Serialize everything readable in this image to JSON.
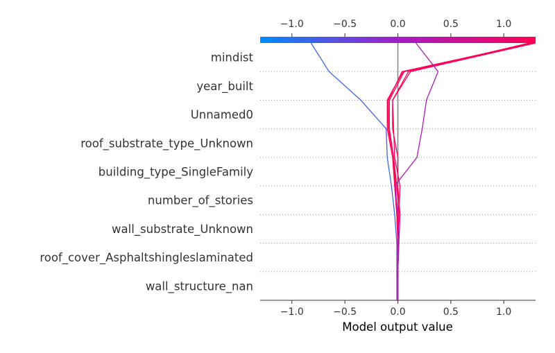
{
  "chart_data": {
    "type": "decision-plot",
    "xlabel": "Model output value",
    "xlim": [
      -1.3,
      1.3
    ],
    "xticks": [
      -1.0,
      -0.5,
      0.0,
      0.5,
      1.0
    ],
    "xtick_labels": [
      "−1.0",
      "−0.5",
      "0.0",
      "0.5",
      "1.0"
    ],
    "base_value": 0.0,
    "features": [
      "wall_structure_nan",
      "roof_cover_Asphaltshingleslaminated",
      "wall_substrate_Unknown",
      "number_of_stories",
      "building_type_SingleFamily",
      "roof_substrate_type_Unknown",
      "Unnamed0",
      "year_built",
      "mindist"
    ],
    "colorbar": {
      "low_color": "#008bfb",
      "high_color": "#ff0052"
    },
    "series": [
      {
        "values": [
          -0.01,
          -0.01,
          -0.01,
          -0.03,
          -0.06,
          -0.1,
          -0.11,
          -0.35,
          -0.65,
          -0.82
        ]
      },
      {
        "values": [
          0.0,
          0.0,
          0.0,
          -0.01,
          -0.03,
          -0.05,
          -0.1,
          -0.1,
          0.05,
          1.3
        ]
      },
      {
        "values": [
          0.0,
          0.0,
          0.0,
          -0.01,
          -0.02,
          -0.04,
          -0.09,
          -0.09,
          0.04,
          1.28
        ]
      },
      {
        "values": [
          0.0,
          0.0,
          0.0,
          0.01,
          -0.01,
          -0.04,
          -0.08,
          -0.08,
          0.06,
          1.26
        ]
      },
      {
        "values": [
          0.0,
          0.0,
          0.0,
          -0.01,
          -0.03,
          -0.04,
          -0.09,
          -0.1,
          0.05,
          1.29
        ]
      },
      {
        "values": [
          0.0,
          0.0,
          0.0,
          0.01,
          0.02,
          -0.03,
          -0.04,
          -0.05,
          0.12,
          1.3
        ]
      },
      {
        "values": [
          0.0,
          0.0,
          0.01,
          0.02,
          0.0,
          0.0,
          -0.05,
          -0.05,
          0.1,
          1.24
        ]
      },
      {
        "values": [
          0.0,
          0.0,
          0.01,
          0.0,
          -0.03,
          0.18,
          0.23,
          0.27,
          0.38,
          0.17
        ]
      }
    ]
  }
}
